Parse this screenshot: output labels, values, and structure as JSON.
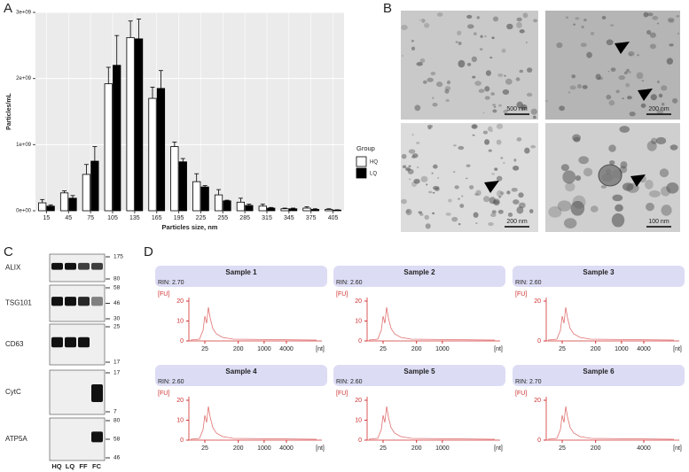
{
  "panels": {
    "a": "A",
    "b": "B",
    "c": "C",
    "d": "D"
  },
  "chart_data": {
    "type": "bar",
    "ylabel": "Particles/mL",
    "xlabel": "Particles size, nm",
    "categories": [
      "15",
      "45",
      "75",
      "105",
      "135",
      "165",
      "195",
      "225",
      "255",
      "285",
      "315",
      "345",
      "375",
      "405"
    ],
    "series": [
      {
        "name": "HQ",
        "color": "#ffffff",
        "values": [
          120000000,
          270000000,
          550000000,
          1920000000,
          2620000000,
          1700000000,
          970000000,
          440000000,
          240000000,
          130000000,
          70000000,
          30000000,
          40000000,
          20000000
        ],
        "errors": [
          50000000,
          30000000,
          150000000,
          250000000,
          250000000,
          170000000,
          70000000,
          120000000,
          80000000,
          60000000,
          30000000,
          10000000,
          20000000,
          10000000
        ]
      },
      {
        "name": "LQ",
        "color": "#000000",
        "values": [
          70000000,
          190000000,
          750000000,
          2200000000,
          2600000000,
          1850000000,
          740000000,
          360000000,
          150000000,
          80000000,
          40000000,
          30000000,
          20000000,
          10000000
        ],
        "errors": [
          20000000,
          40000000,
          220000000,
          450000000,
          300000000,
          270000000,
          50000000,
          20000000,
          10000000,
          20000000,
          10000000,
          10000000,
          10000000,
          5000000
        ]
      }
    ],
    "ylim": [
      0,
      3000000000
    ],
    "yticks": [
      {
        "value": 0,
        "label": "0e+00"
      },
      {
        "value": 1000000000,
        "label": "1e+09"
      },
      {
        "value": 2000000000,
        "label": "2e+09"
      },
      {
        "value": 3000000000,
        "label": "3e+09"
      }
    ],
    "grid": true,
    "legend_title": "Group",
    "legend": "right"
  },
  "micrographs": {
    "scale_bars": [
      "500 nm",
      "200 nm",
      "200 nm",
      "100 nm"
    ]
  },
  "western": {
    "rows": [
      {
        "label": "ALIX",
        "markers": [
          "175",
          "80"
        ]
      },
      {
        "label": "TSG101",
        "markers": [
          "58",
          "46",
          "30"
        ]
      },
      {
        "label": "CD63",
        "markers": [
          "25",
          "17"
        ]
      },
      {
        "label": "CytC",
        "markers": [
          "17",
          "7"
        ]
      },
      {
        "label": "ATP5A",
        "markers": [
          "80",
          "58",
          "46"
        ]
      }
    ],
    "lanes": [
      "HQ",
      "LQ",
      "FF",
      "FC"
    ]
  },
  "bioanalyzer": {
    "yunit": "[FU]",
    "xunit": "[nt]",
    "samples": [
      {
        "title": "Sample 1",
        "rin": "RIN: 2.70",
        "yticks": [
          "20",
          "10",
          "0"
        ],
        "xticks": [
          "25",
          "200",
          "1000",
          "4000"
        ]
      },
      {
        "title": "Sample 2",
        "rin": "RIN: 2.60",
        "yticks": [
          "20",
          "10",
          "0"
        ],
        "xticks": [
          "25",
          "200",
          "1000"
        ]
      },
      {
        "title": "Sample 3",
        "rin": "RIN: 2.60",
        "yticks": [
          "20",
          "0"
        ],
        "xticks": [
          "25",
          "200",
          "1000",
          "4000"
        ]
      },
      {
        "title": "Sample 4",
        "rin": "RIN: 2.60",
        "yticks": [
          "20",
          "10",
          "0"
        ],
        "xticks": [
          "25",
          "200",
          "1000",
          "4000"
        ]
      },
      {
        "title": "Sample 5",
        "rin": "RIN: 2.60",
        "yticks": [
          "20",
          "10",
          "0"
        ],
        "xticks": [
          "25",
          "200",
          "1000"
        ]
      },
      {
        "title": "Sample 6",
        "rin": "RIN: 2.70",
        "yticks": [
          "20",
          "0"
        ],
        "xticks": [
          "25",
          "200",
          "4000"
        ]
      }
    ]
  }
}
